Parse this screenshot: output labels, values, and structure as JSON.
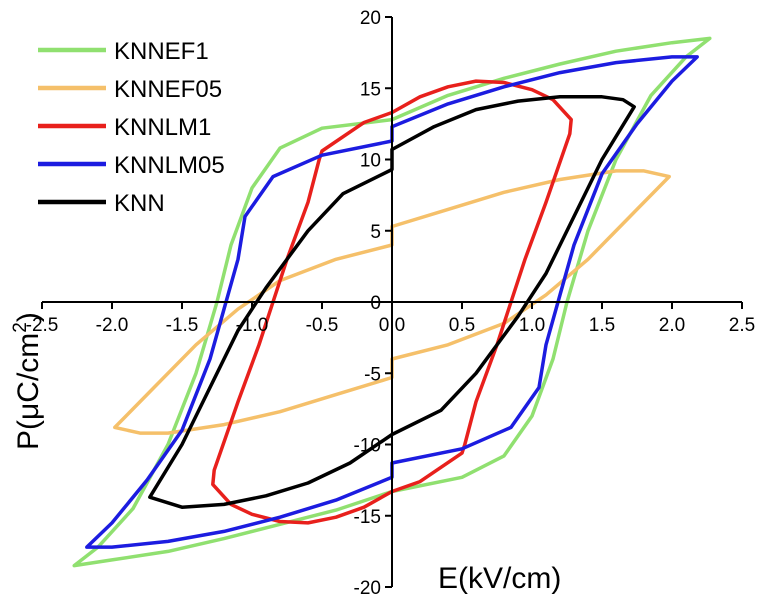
{
  "chart_data": {
    "type": "line",
    "title": "",
    "xlabel": "E(kV/cm)",
    "ylabel": "P(μC/cm²)",
    "ylabel_parts": [
      "P(",
      "μ",
      "C/cm",
      "2",
      ")"
    ],
    "xlim": [
      -2.5,
      2.5
    ],
    "ylim": [
      -20,
      20
    ],
    "x_ticks": [
      -2.5,
      -2.0,
      -1.5,
      -1.0,
      -0.5,
      0.0,
      0.5,
      1.0,
      1.5,
      2.0,
      2.5
    ],
    "x_tick_labels": [
      "-2.5",
      "-2.0",
      "-1.5",
      "-1.0",
      "-0.5",
      "0.0",
      "0.5",
      "1.0",
      "1.5",
      "2.0",
      "2.5"
    ],
    "y_ticks": [
      -20,
      -15,
      -10,
      -5,
      0,
      5,
      10,
      15,
      20
    ],
    "y_tick_labels": [
      "-20",
      "-15",
      "-10",
      "-5",
      "0",
      "5",
      "10",
      "15",
      "20"
    ],
    "grid": false,
    "legend_position": "top-left",
    "series": [
      {
        "name": "KNNEF1",
        "color": "#90e070",
        "points": [
          [
            0,
            12.8
          ],
          [
            0.4,
            14.5
          ],
          [
            0.8,
            15.7
          ],
          [
            1.2,
            16.7
          ],
          [
            1.6,
            17.6
          ],
          [
            2.0,
            18.2
          ],
          [
            2.27,
            18.5
          ],
          [
            2.1,
            17.2
          ],
          [
            1.85,
            14.5
          ],
          [
            1.6,
            10.0
          ],
          [
            1.4,
            5.0
          ],
          [
            1.25,
            0.0
          ],
          [
            1.15,
            -4.0
          ],
          [
            1.0,
            -8.0
          ],
          [
            0.8,
            -10.8
          ],
          [
            0.5,
            -12.3
          ],
          [
            0.0,
            -13.3
          ],
          [
            -0.4,
            -14.6
          ],
          [
            -0.8,
            -15.6
          ],
          [
            -1.2,
            -16.6
          ],
          [
            -1.6,
            -17.5
          ],
          [
            -2.0,
            -18.1
          ],
          [
            -2.27,
            -18.5
          ],
          [
            -2.1,
            -17.2
          ],
          [
            -1.85,
            -14.5
          ],
          [
            -1.6,
            -10.0
          ],
          [
            -1.4,
            -5.0
          ],
          [
            -1.25,
            0.0
          ],
          [
            -1.15,
            4.0
          ],
          [
            -1.0,
            8.0
          ],
          [
            -0.8,
            10.8
          ],
          [
            -0.5,
            12.2
          ],
          [
            0,
            12.8
          ]
        ]
      },
      {
        "name": "KNNEF05",
        "color": "#f5c06a",
        "points": [
          [
            0,
            5.3
          ],
          [
            0.4,
            6.5
          ],
          [
            0.8,
            7.7
          ],
          [
            1.2,
            8.6
          ],
          [
            1.6,
            9.2
          ],
          [
            1.8,
            9.2
          ],
          [
            1.98,
            8.8
          ],
          [
            1.7,
            6.0
          ],
          [
            1.4,
            3.0
          ],
          [
            1.1,
            0.5
          ],
          [
            0.8,
            -1.5
          ],
          [
            0.4,
            -3.0
          ],
          [
            0.0,
            -4.0
          ],
          [
            0.0,
            -5.3
          ],
          [
            -0.4,
            -6.5
          ],
          [
            -0.8,
            -7.7
          ],
          [
            -1.2,
            -8.6
          ],
          [
            -1.6,
            -9.2
          ],
          [
            -1.8,
            -9.2
          ],
          [
            -1.98,
            -8.8
          ],
          [
            -1.7,
            -6.0
          ],
          [
            -1.4,
            -3.0
          ],
          [
            -1.1,
            -0.5
          ],
          [
            -0.8,
            1.5
          ],
          [
            -0.4,
            3.0
          ],
          [
            0,
            4.0
          ],
          [
            0,
            5.3
          ]
        ]
      },
      {
        "name": "KNNLM1",
        "color": "#e8201c",
        "points": [
          [
            0,
            13.3
          ],
          [
            0.2,
            14.4
          ],
          [
            0.4,
            15.1
          ],
          [
            0.6,
            15.5
          ],
          [
            0.8,
            15.4
          ],
          [
            1.0,
            14.9
          ],
          [
            1.15,
            14.2
          ],
          [
            1.28,
            12.8
          ],
          [
            1.27,
            11.8
          ],
          [
            1.1,
            7.0
          ],
          [
            0.95,
            3.0
          ],
          [
            0.85,
            0.0
          ],
          [
            0.75,
            -3.0
          ],
          [
            0.6,
            -7.0
          ],
          [
            0.52,
            -10.0
          ],
          [
            0.5,
            -10.6
          ],
          [
            0.2,
            -12.6
          ],
          [
            0.0,
            -13.3
          ],
          [
            -0.2,
            -14.4
          ],
          [
            -0.4,
            -15.1
          ],
          [
            -0.6,
            -15.5
          ],
          [
            -0.8,
            -15.4
          ],
          [
            -1.0,
            -14.9
          ],
          [
            -1.15,
            -14.2
          ],
          [
            -1.28,
            -12.8
          ],
          [
            -1.27,
            -11.8
          ],
          [
            -1.1,
            -7.0
          ],
          [
            -0.95,
            -3.0
          ],
          [
            -0.85,
            0.0
          ],
          [
            -0.75,
            3.0
          ],
          [
            -0.6,
            7.0
          ],
          [
            -0.52,
            10.0
          ],
          [
            -0.5,
            10.6
          ],
          [
            -0.2,
            12.6
          ],
          [
            0,
            13.3
          ]
        ]
      },
      {
        "name": "KNNLM05",
        "color": "#1c1ce0",
        "points": [
          [
            0,
            12.3
          ],
          [
            0.4,
            13.9
          ],
          [
            0.8,
            15.1
          ],
          [
            1.2,
            16.1
          ],
          [
            1.6,
            16.8
          ],
          [
            2.0,
            17.2
          ],
          [
            2.18,
            17.2
          ],
          [
            2.0,
            15.5
          ],
          [
            1.75,
            12.5
          ],
          [
            1.5,
            9.0
          ],
          [
            1.3,
            4.0
          ],
          [
            1.2,
            0.5
          ],
          [
            1.1,
            -3.0
          ],
          [
            1.05,
            -6.0
          ],
          [
            0.85,
            -8.8
          ],
          [
            0.5,
            -10.3
          ],
          [
            0.0,
            -11.3
          ],
          [
            0.0,
            -12.3
          ],
          [
            -0.4,
            -13.9
          ],
          [
            -0.8,
            -15.1
          ],
          [
            -1.2,
            -16.1
          ],
          [
            -1.6,
            -16.8
          ],
          [
            -2.0,
            -17.2
          ],
          [
            -2.18,
            -17.2
          ],
          [
            -2.0,
            -15.5
          ],
          [
            -1.75,
            -12.5
          ],
          [
            -1.5,
            -9.0
          ],
          [
            -1.3,
            -4.0
          ],
          [
            -1.2,
            -0.5
          ],
          [
            -1.1,
            3.0
          ],
          [
            -1.05,
            6.0
          ],
          [
            -0.85,
            8.8
          ],
          [
            -0.5,
            10.3
          ],
          [
            0,
            11.3
          ],
          [
            0,
            12.3
          ]
        ]
      },
      {
        "name": "KNN",
        "color": "#000000",
        "points": [
          [
            0,
            10.7
          ],
          [
            0.3,
            12.3
          ],
          [
            0.6,
            13.5
          ],
          [
            0.9,
            14.1
          ],
          [
            1.2,
            14.4
          ],
          [
            1.5,
            14.4
          ],
          [
            1.65,
            14.2
          ],
          [
            1.73,
            13.7
          ],
          [
            1.5,
            10.0
          ],
          [
            1.3,
            6.0
          ],
          [
            1.1,
            2.0
          ],
          [
            0.9,
            -1.0
          ],
          [
            0.6,
            -5.0
          ],
          [
            0.35,
            -7.6
          ],
          [
            0.0,
            -9.3
          ],
          [
            -0.3,
            -11.3
          ],
          [
            -0.6,
            -12.7
          ],
          [
            -0.9,
            -13.6
          ],
          [
            -1.2,
            -14.2
          ],
          [
            -1.5,
            -14.4
          ],
          [
            -1.73,
            -13.7
          ],
          [
            -1.5,
            -10.0
          ],
          [
            -1.3,
            -6.0
          ],
          [
            -1.1,
            -2.0
          ],
          [
            -0.9,
            1.0
          ],
          [
            -0.6,
            5.0
          ],
          [
            -0.35,
            7.6
          ],
          [
            0,
            9.3
          ],
          [
            0,
            10.7
          ]
        ]
      }
    ]
  }
}
